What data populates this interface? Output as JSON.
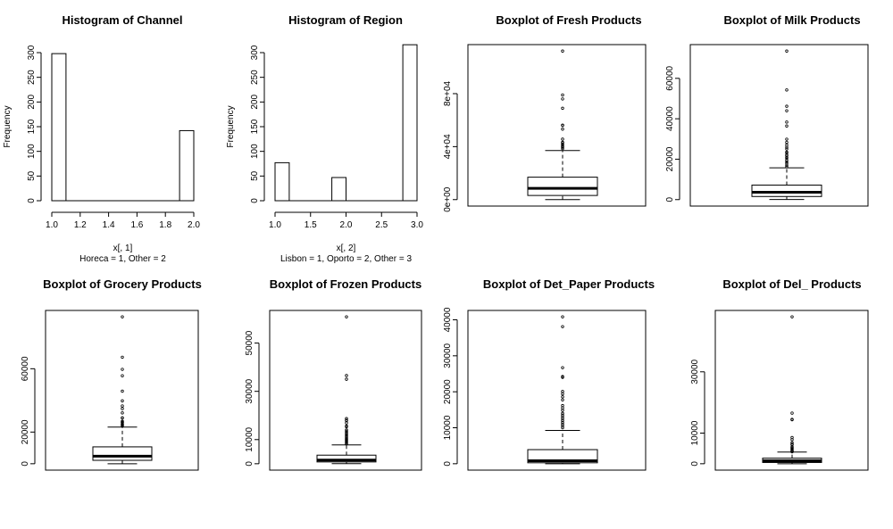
{
  "chart_data": [
    {
      "type": "histogram",
      "title": "Histogram of Channel",
      "xlabel": "x[, 1]",
      "sublabel": "Horeca = 1, Other = 2",
      "ylabel": "Frequency",
      "xlim": [
        1.0,
        2.0
      ],
      "ylim": [
        0,
        300
      ],
      "xticks": [
        "1.0",
        "1.2",
        "1.4",
        "1.6",
        "1.8",
        "2.0"
      ],
      "yticks": [
        "0",
        "50",
        "100",
        "150",
        "200",
        "250",
        "300"
      ],
      "bins": [
        {
          "from": 1.0,
          "to": 1.1,
          "count": 298
        },
        {
          "from": 1.9,
          "to": 2.0,
          "count": 142
        }
      ]
    },
    {
      "type": "histogram",
      "title": "Histogram of Region",
      "xlabel": "x[, 2]",
      "sublabel": "Lisbon = 1, Oporto = 2, Other = 3",
      "ylabel": "Frequency",
      "xlim": [
        1.0,
        3.0
      ],
      "ylim": [
        0,
        300
      ],
      "xticks": [
        "1.0",
        "1.5",
        "2.0",
        "2.5",
        "3.0"
      ],
      "yticks": [
        "0",
        "50",
        "100",
        "150",
        "200",
        "250",
        "300"
      ],
      "bins": [
        {
          "from": 1.0,
          "to": 1.2,
          "count": 77
        },
        {
          "from": 1.8,
          "to": 2.0,
          "count": 47
        },
        {
          "from": 2.8,
          "to": 3.0,
          "count": 316
        }
      ]
    },
    {
      "type": "boxplot",
      "title": "Boxplot of Fresh Products",
      "ylim": [
        0,
        112151
      ],
      "yticks": [
        {
          "value": 0,
          "label": "0e+00"
        },
        {
          "value": 40000,
          "label": "4e+04"
        },
        {
          "value": 80000,
          "label": "8e+04"
        }
      ],
      "box": {
        "min": 3,
        "q1": 3128,
        "median": 8504,
        "q3": 16934,
        "whisker_high": 37036
      },
      "outliers": [
        112151,
        79000,
        76000,
        68951,
        56159,
        56083,
        53205,
        45640,
        43265,
        43088,
        42000,
        41000,
        40000,
        39500,
        38500
      ]
    },
    {
      "type": "boxplot",
      "title": "Boxplot of Milk Products",
      "ylim": [
        0,
        73498
      ],
      "yticks": [
        {
          "value": 0,
          "label": "0"
        },
        {
          "value": 20000,
          "label": "20000"
        },
        {
          "value": 40000,
          "label": "40000"
        },
        {
          "value": 60000,
          "label": "60000"
        }
      ],
      "box": {
        "min": 55,
        "q1": 1533,
        "median": 3627,
        "q3": 7190,
        "whisker_high": 15729
      },
      "outliers": [
        73498,
        54259,
        46197,
        43950,
        38369,
        36423,
        29892,
        28326,
        27000,
        25862,
        25071,
        23527,
        23133,
        22044,
        21858,
        20959,
        20484,
        19500,
        18664,
        18000,
        17000,
        16300
      ]
    },
    {
      "type": "boxplot",
      "title": "Boxplot of Grocery Products",
      "ylim": [
        0,
        92780
      ],
      "yticks": [
        {
          "value": 0,
          "label": "0"
        },
        {
          "value": 20000,
          "label": "20000"
        },
        {
          "value": 60000,
          "label": "60000"
        }
      ],
      "box": {
        "min": 3,
        "q1": 2153,
        "median": 4756,
        "q3": 10656,
        "whisker_high": 23127
      },
      "outliers": [
        92780,
        67298,
        59598,
        55571,
        45828,
        39694,
        36486,
        34792,
        32114,
        28986,
        28921,
        26870,
        26316,
        25957,
        25000,
        24500,
        24000
      ]
    },
    {
      "type": "boxplot",
      "title": "Boxplot of Frozen Products",
      "ylim": [
        0,
        60869
      ],
      "yticks": [
        {
          "value": 0,
          "label": "0"
        },
        {
          "value": 10000,
          "label": "10000"
        },
        {
          "value": 30000,
          "label": "30000"
        },
        {
          "value": 50000,
          "label": "50000"
        }
      ],
      "box": {
        "min": 25,
        "q1": 742,
        "median": 1526,
        "q3": 3554,
        "whisker_high": 7782
      },
      "outliers": [
        60869,
        36534,
        35009,
        18711,
        18028,
        17866,
        16919,
        15601,
        15348,
        14000,
        13500,
        13000,
        12500,
        12000,
        11500,
        11000,
        10500,
        10155,
        9800,
        9400,
        9000,
        8600,
        8200
      ]
    },
    {
      "type": "boxplot",
      "title": "Boxplot of Det_Paper Products",
      "ylim": [
        0,
        40827
      ],
      "yticks": [
        {
          "value": 0,
          "label": "0"
        },
        {
          "value": 10000,
          "label": "10000"
        },
        {
          "value": 20000,
          "label": "20000"
        },
        {
          "value": 30000,
          "label": "30000"
        },
        {
          "value": 40000,
          "label": "40000"
        }
      ],
      "box": {
        "min": 3,
        "q1": 257,
        "median": 817,
        "q3": 3922,
        "whisker_high": 9265
      },
      "outliers": [
        40827,
        38102,
        26701,
        24231,
        24000,
        20070,
        19410,
        18594,
        17740,
        16171,
        15500,
        14841,
        14000,
        13500,
        13000,
        12500,
        12000,
        11500,
        11000,
        10500,
        10000
      ]
    },
    {
      "type": "boxplot",
      "title": "Boxplot of Del_ Products",
      "ylim": [
        0,
        47943
      ],
      "yticks": [
        {
          "value": 0,
          "label": "0"
        },
        {
          "value": 10000,
          "label": "10000"
        },
        {
          "value": 30000,
          "label": "30000"
        }
      ],
      "box": {
        "min": 3,
        "q1": 408,
        "median": 966,
        "q3": 1820,
        "whisker_high": 3800
      },
      "outliers": [
        47943,
        16523,
        14472,
        14351,
        8550,
        7844,
        6854,
        6372,
        6250,
        5500,
        5200,
        4900,
        4600,
        4300,
        4100,
        3900
      ]
    }
  ]
}
